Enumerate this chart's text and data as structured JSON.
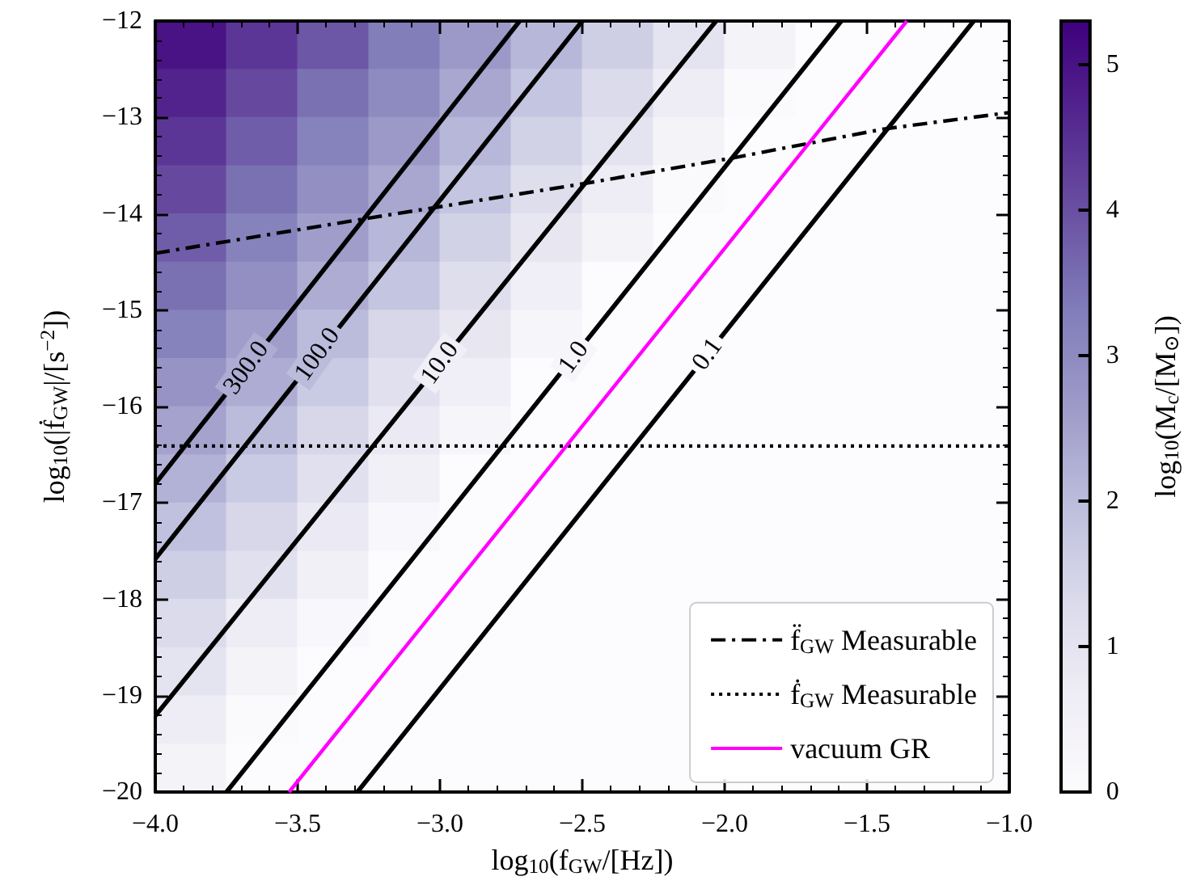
{
  "chart_data": [
    {
      "type": "heatmap",
      "clabel": "log$_{10}$(M$_{c}$/[M$_{⊙}$])",
      "clim": [
        0,
        5.3
      ],
      "cticks": [
        0,
        1,
        2,
        3,
        4,
        5
      ],
      "categories": [
        null,
        null,
        null,
        null,
        null,
        null,
        null,
        null,
        null,
        null,
        null,
        null
      ],
      "y_categories": [
        null,
        null,
        null,
        null,
        null,
        null,
        null,
        null,
        null,
        null,
        null,
        null,
        null,
        null,
        null,
        null
      ],
      "cells": [
        [
          5.0,
          4.4,
          3.9,
          3.3,
          2.7,
          2.1,
          1.6,
          1.0,
          0.4,
          0,
          0,
          0
        ],
        [
          4.7,
          4.1,
          3.5,
          3.0,
          2.4,
          1.8,
          1.3,
          0.7,
          0.1,
          0,
          0,
          0
        ],
        [
          4.4,
          3.8,
          3.2,
          2.7,
          2.1,
          1.5,
          1.0,
          0.4,
          0,
          0,
          0,
          0
        ],
        [
          4.1,
          3.5,
          2.9,
          2.4,
          1.8,
          1.2,
          0.7,
          0.1,
          0,
          0,
          0,
          0
        ],
        [
          3.8,
          3.2,
          2.6,
          2.1,
          1.5,
          0.9,
          0.4,
          0,
          0,
          0,
          0,
          0
        ],
        [
          3.5,
          2.9,
          2.3,
          1.8,
          1.2,
          0.6,
          0,
          0,
          0,
          0,
          0,
          0
        ],
        [
          3.2,
          2.6,
          2.0,
          1.4,
          0.9,
          0.3,
          0,
          0,
          0,
          0,
          0,
          0
        ],
        [
          2.8,
          2.3,
          1.7,
          1.1,
          0.6,
          0,
          0,
          0,
          0,
          0,
          0,
          0
        ],
        [
          2.5,
          2.0,
          1.4,
          0.8,
          0.3,
          0,
          0,
          0,
          0,
          0,
          0,
          0
        ],
        [
          2.2,
          1.7,
          1.1,
          0.5,
          0,
          0,
          0,
          0,
          0,
          0,
          0,
          0
        ],
        [
          1.9,
          1.4,
          0.8,
          0.2,
          0,
          0,
          0,
          0,
          0,
          0,
          0,
          0
        ],
        [
          1.6,
          1.1,
          0.5,
          0,
          0,
          0,
          0,
          0,
          0,
          0,
          0,
          0
        ],
        [
          1.3,
          0.7,
          0.2,
          0,
          0,
          0,
          0,
          0,
          0,
          0,
          0,
          0
        ],
        [
          1.0,
          0.4,
          0,
          0,
          0,
          0,
          0,
          0,
          0,
          0,
          0,
          0
        ],
        [
          0.7,
          0.1,
          0,
          0,
          0,
          0,
          0,
          0,
          0,
          0,
          0,
          0
        ],
        [
          0.4,
          0,
          0,
          0,
          0,
          0,
          0,
          0,
          0,
          0,
          0,
          0
        ]
      ]
    },
    {
      "type": "line",
      "xlabel": "log$_{10}$(f$_{GW}$/[Hz])",
      "ylabel": "log$_{10}$(|ḟ$_{GW}$|/[s$^{−2}$])",
      "xlim": [
        -4,
        -1
      ],
      "xticks": [
        {
          "value": -4,
          "label": "−4.0"
        },
        {
          "value": -3.5,
          "label": "−3.5"
        },
        {
          "value": -3,
          "label": "−3.0"
        },
        {
          "value": -2.5,
          "label": "−2.5"
        },
        {
          "value": -2,
          "label": "−2.0"
        },
        {
          "value": -1.5,
          "label": "−1.5"
        },
        {
          "value": -1,
          "label": "−1.0"
        }
      ],
      "ylim": [
        -20,
        -12
      ],
      "yticks": [
        {
          "value": -20,
          "label": "−20"
        },
        {
          "value": -19,
          "label": "−19"
        },
        {
          "value": -18,
          "label": "−18"
        },
        {
          "value": -17,
          "label": "−17"
        },
        {
          "value": -16,
          "label": "−16"
        },
        {
          "value": -15,
          "label": "−15"
        },
        {
          "value": -14,
          "label": "−14"
        },
        {
          "value": -13,
          "label": "−13"
        },
        {
          "value": -12,
          "label": "−12"
        }
      ],
      "legend": "bottom right",
      "marker": "none",
      "series": [
        {
          "color": "#000000",
          "x": [
            -4,
            -2.72
          ],
          "values": [
            -16.8,
            -12
          ]
        },
        {
          "color": "#000000",
          "x": [
            -4,
            -2.5
          ],
          "values": [
            -17.58,
            -12
          ]
        },
        {
          "color": "#000000",
          "x": [
            -4,
            -2.03
          ],
          "values": [
            -19.21,
            -12
          ]
        },
        {
          "color": "#000000",
          "x": [
            -3.75,
            -1.59
          ],
          "values": [
            -20,
            -12
          ]
        },
        {
          "color": "#000000",
          "x": [
            -3.29,
            -1.125
          ],
          "values": [
            -20,
            -12
          ]
        },
        {
          "name": "f̈$_{GW}$ Measurable",
          "color": "#000000",
          "line_style": "dashdot",
          "x": [
            -4,
            -3.26,
            -2.48,
            -1.97,
            -1.44,
            -1
          ],
          "values": [
            -14.41,
            -14.05,
            -13.68,
            -13.42,
            -13.12,
            -12.95
          ]
        },
        {
          "name": "ḟ$_{GW}$ Measurable",
          "color": "#000000",
          "line_style": "dotted",
          "x": [
            -4,
            -1
          ],
          "values": [
            -16.41,
            -16.41
          ]
        },
        {
          "name": "vacuum GR",
          "color": "#ff00ff",
          "x": [
            -3.53,
            -1.36
          ],
          "values": [
            -20,
            -12
          ]
        }
      ],
      "annotations": [
        {
          "text": "300.0",
          "x": -3.68,
          "y": -15.6
        },
        {
          "text": "100.0",
          "x": -3.43,
          "y": -15.46
        },
        {
          "text": "10.0",
          "x": -3.0,
          "y": -15.55
        },
        {
          "text": "1.0",
          "x": -2.53,
          "y": -15.49
        },
        {
          "text": "0.1",
          "x": -2.06,
          "y": -15.46
        }
      ]
    }
  ]
}
